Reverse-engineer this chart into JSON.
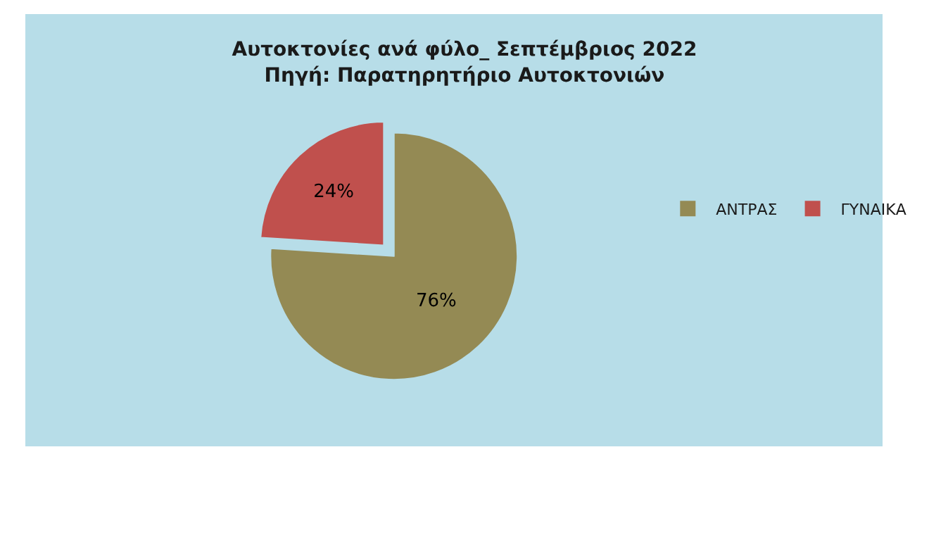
{
  "chart_data": {
    "type": "pie",
    "title": "Αυτοκτονίες ανά φύλο_ Σεπτέμβριος 2022",
    "subtitle": "Πηγή: Παρατηρητήριο Αυτοκτονιών",
    "categories": [
      "ΑΝΤΡΑΣ",
      "ΓΥΝΑΙΚΑ"
    ],
    "values": [
      76,
      24
    ],
    "value_labels": [
      "76%",
      "24%"
    ],
    "colors": [
      "#948a54",
      "#c0504d"
    ],
    "legend": "right"
  }
}
